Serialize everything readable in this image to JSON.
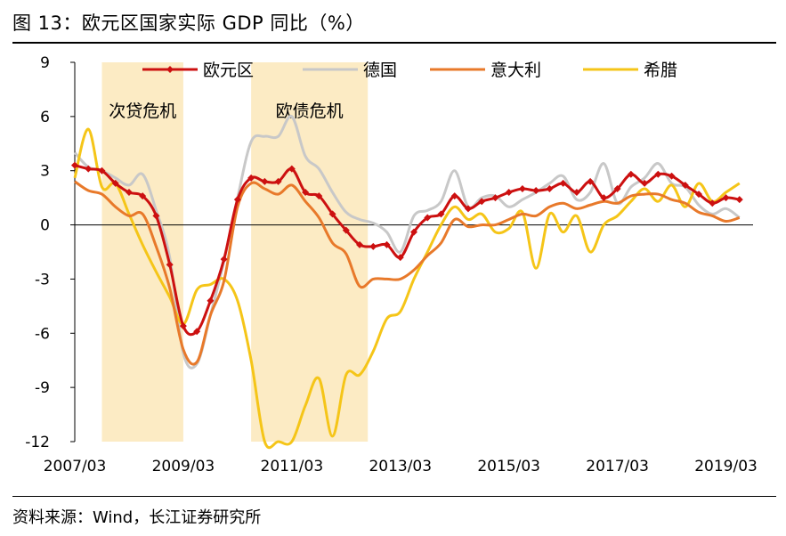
{
  "figure": {
    "title": "图 13：欧元区国家实际 GDP 同比（%）",
    "source": "资料来源：Wind，长江证券研究所"
  },
  "chart_data": {
    "type": "line",
    "title": "欧元区国家实际 GDP 同比（%）",
    "xlabel": "",
    "ylabel": "",
    "ylim": [
      -12,
      9
    ],
    "yticks": [
      9,
      6,
      3,
      0,
      -3,
      -6,
      -9,
      -12
    ],
    "ytick_labels": [
      "9",
      "6",
      "3",
      "0",
      "-3",
      "-6",
      "-9",
      "-12"
    ],
    "x_range": [
      2007.0,
      2019.5
    ],
    "xticks": [
      2007.0,
      2009.0,
      2011.0,
      2013.0,
      2015.0,
      2017.0,
      2019.0
    ],
    "xtick_labels": [
      "2007/03",
      "2009/03",
      "2011/03",
      "2013/03",
      "2015/03",
      "2017/03",
      "2019/03"
    ],
    "legend_position": "top",
    "shaded_regions": [
      {
        "label": "次贷危机",
        "start": 2007.5,
        "end": 2009.0,
        "color": "#FCEBC4"
      },
      {
        "label": "欧债危机",
        "start": 2010.25,
        "end": 2012.4,
        "color": "#FCEBC4"
      }
    ],
    "series": [
      {
        "name": "欧元区",
        "color": "#CC1010",
        "marker": "diamond",
        "x": [
          2007.0,
          2007.25,
          2007.5,
          2007.75,
          2008.0,
          2008.25,
          2008.5,
          2008.75,
          2009.0,
          2009.25,
          2009.5,
          2009.75,
          2010.0,
          2010.25,
          2010.5,
          2010.75,
          2011.0,
          2011.25,
          2011.5,
          2011.75,
          2012.0,
          2012.25,
          2012.5,
          2012.75,
          2013.0,
          2013.25,
          2013.5,
          2013.75,
          2014.0,
          2014.25,
          2014.5,
          2014.75,
          2015.0,
          2015.25,
          2015.5,
          2015.75,
          2016.0,
          2016.25,
          2016.5,
          2016.75,
          2017.0,
          2017.25,
          2017.5,
          2017.75,
          2018.0,
          2018.25,
          2018.5,
          2018.75,
          2019.0,
          2019.25
        ],
        "values": [
          3.3,
          3.1,
          3.0,
          2.3,
          1.8,
          1.6,
          0.5,
          -2.2,
          -5.6,
          -5.9,
          -4.2,
          -1.9,
          1.4,
          2.6,
          2.4,
          2.4,
          3.1,
          1.8,
          1.6,
          0.6,
          -0.3,
          -1.1,
          -1.2,
          -1.1,
          -1.8,
          -0.4,
          0.4,
          0.6,
          1.6,
          0.9,
          1.3,
          1.5,
          1.8,
          2.0,
          1.9,
          2.0,
          2.3,
          1.8,
          2.4,
          1.5,
          2.0,
          2.8,
          2.3,
          2.8,
          2.7,
          2.2,
          1.7,
          1.2,
          1.5,
          1.4
        ]
      },
      {
        "name": "德国",
        "color": "#C8C8C8",
        "x": [
          2007.0,
          2007.25,
          2007.5,
          2007.75,
          2008.0,
          2008.25,
          2008.5,
          2008.75,
          2009.0,
          2009.25,
          2009.5,
          2009.75,
          2010.0,
          2010.25,
          2010.5,
          2010.75,
          2011.0,
          2011.25,
          2011.5,
          2011.75,
          2012.0,
          2012.25,
          2012.5,
          2012.75,
          2013.0,
          2013.25,
          2013.5,
          2013.75,
          2014.0,
          2014.25,
          2014.5,
          2014.75,
          2015.0,
          2015.25,
          2015.5,
          2015.75,
          2016.0,
          2016.25,
          2016.5,
          2016.75,
          2017.0,
          2017.25,
          2017.5,
          2017.75,
          2018.0,
          2018.25,
          2018.5,
          2018.75,
          2019.0,
          2019.25
        ],
        "values": [
          4.0,
          3.2,
          3.0,
          2.6,
          2.2,
          2.8,
          0.8,
          -1.8,
          -7.1,
          -7.7,
          -5.0,
          -2.0,
          1.5,
          4.6,
          4.9,
          4.9,
          6.0,
          3.8,
          3.1,
          1.8,
          0.7,
          0.3,
          0.1,
          -0.4,
          -1.5,
          0.5,
          0.8,
          1.3,
          3.0,
          1.0,
          1.5,
          1.6,
          1.0,
          1.4,
          1.8,
          2.3,
          2.7,
          1.4,
          1.8,
          3.4,
          1.2,
          2.1,
          2.6,
          3.4,
          2.3,
          2.1,
          1.1,
          0.6,
          0.9,
          0.4
        ]
      },
      {
        "name": "意大利",
        "color": "#E8792A",
        "x": [
          2007.0,
          2007.25,
          2007.5,
          2007.75,
          2008.0,
          2008.25,
          2008.5,
          2008.75,
          2009.0,
          2009.25,
          2009.5,
          2009.75,
          2010.0,
          2010.25,
          2010.5,
          2010.75,
          2011.0,
          2011.25,
          2011.5,
          2011.75,
          2012.0,
          2012.25,
          2012.5,
          2012.75,
          2013.0,
          2013.25,
          2013.5,
          2013.75,
          2014.0,
          2014.25,
          2014.5,
          2014.75,
          2015.0,
          2015.25,
          2015.5,
          2015.75,
          2016.0,
          2016.25,
          2016.5,
          2016.75,
          2017.0,
          2017.25,
          2017.5,
          2017.75,
          2018.0,
          2018.25,
          2018.5,
          2018.75,
          2019.0,
          2019.25
        ],
        "values": [
          2.4,
          1.9,
          1.7,
          1.0,
          0.5,
          0.6,
          -1.2,
          -3.5,
          -6.9,
          -7.6,
          -5.0,
          -3.1,
          1.0,
          2.3,
          2.0,
          1.7,
          2.2,
          1.3,
          0.4,
          -1.0,
          -1.6,
          -3.4,
          -3.0,
          -3.0,
          -3.0,
          -2.5,
          -1.7,
          -1.0,
          0.3,
          -0.1,
          0.0,
          0.0,
          0.3,
          0.6,
          0.5,
          1.0,
          1.2,
          0.9,
          1.1,
          1.3,
          1.2,
          1.6,
          1.7,
          1.7,
          1.4,
          1.2,
          0.7,
          0.5,
          0.2,
          0.4
        ]
      },
      {
        "name": "希腊",
        "color": "#F5C518",
        "x": [
          2007.0,
          2007.25,
          2007.5,
          2007.75,
          2008.0,
          2008.25,
          2008.5,
          2008.75,
          2009.0,
          2009.25,
          2009.5,
          2009.75,
          2010.0,
          2010.25,
          2010.5,
          2010.75,
          2011.0,
          2011.25,
          2011.5,
          2011.75,
          2012.0,
          2012.25,
          2012.5,
          2012.75,
          2013.0,
          2013.25,
          2013.5,
          2013.75,
          2014.0,
          2014.25,
          2014.5,
          2014.75,
          2015.0,
          2015.25,
          2015.5,
          2015.75,
          2016.0,
          2016.25,
          2016.5,
          2016.75,
          2017.0,
          2017.25,
          2017.5,
          2017.75,
          2018.0,
          2018.25,
          2018.5,
          2018.75,
          2019.0,
          2019.25
        ],
        "values": [
          2.6,
          5.3,
          2.1,
          2.3,
          0.6,
          -1.1,
          -2.6,
          -4.0,
          -5.5,
          -3.6,
          -3.3,
          -3.0,
          -4.2,
          -7.5,
          -12.0,
          -12.5,
          -12.2,
          -10.0,
          -8.5,
          -11.7,
          -8.3,
          -8.3,
          -7.0,
          -5.2,
          -4.8,
          -3.0,
          -1.5,
          0.0,
          1.0,
          0.3,
          0.6,
          -0.4,
          -0.2,
          0.7,
          -2.4,
          0.6,
          -0.4,
          0.5,
          -1.5,
          0.0,
          0.5,
          1.3,
          2.0,
          1.3,
          2.2,
          1.0,
          2.3,
          1.3,
          1.8,
          2.3
        ]
      }
    ]
  }
}
